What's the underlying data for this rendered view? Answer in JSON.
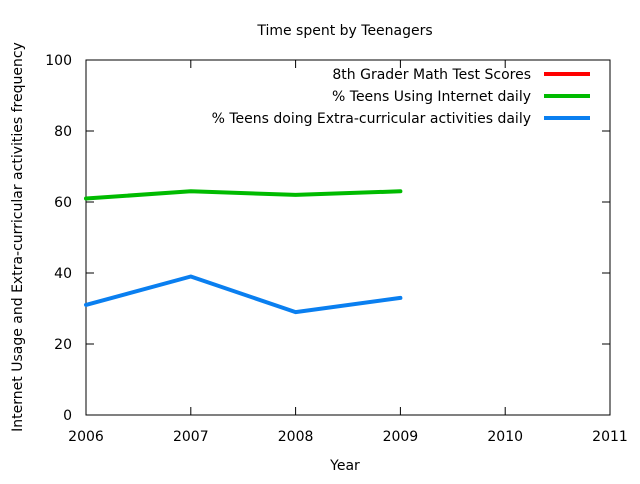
{
  "chart_data": {
    "type": "line",
    "title": "Time spent by Teenagers",
    "xlabel": "Year",
    "ylabel": "Internet Usage and Extra-curricular activities frequency",
    "xlim": [
      2006,
      2011
    ],
    "ylim": [
      0,
      100
    ],
    "x_ticks": [
      2006,
      2007,
      2008,
      2009,
      2010,
      2011
    ],
    "y_ticks": [
      0,
      20,
      40,
      60,
      80,
      100
    ],
    "grid": false,
    "legend_position": "top-right",
    "series": [
      {
        "name": "8th Grader Math Test Scores",
        "color": "#ff0000",
        "x": [],
        "values": []
      },
      {
        "name": "% Teens Using Internet daily",
        "color": "#00bb00",
        "x": [
          2006,
          2007,
          2008,
          2009
        ],
        "values": [
          61,
          63,
          62,
          63
        ]
      },
      {
        "name": "% Teens doing Extra-curricular activities daily",
        "color": "#0a7ff0",
        "x": [
          2006,
          2007,
          2008,
          2009
        ],
        "values": [
          31,
          39,
          29,
          33
        ]
      }
    ]
  }
}
